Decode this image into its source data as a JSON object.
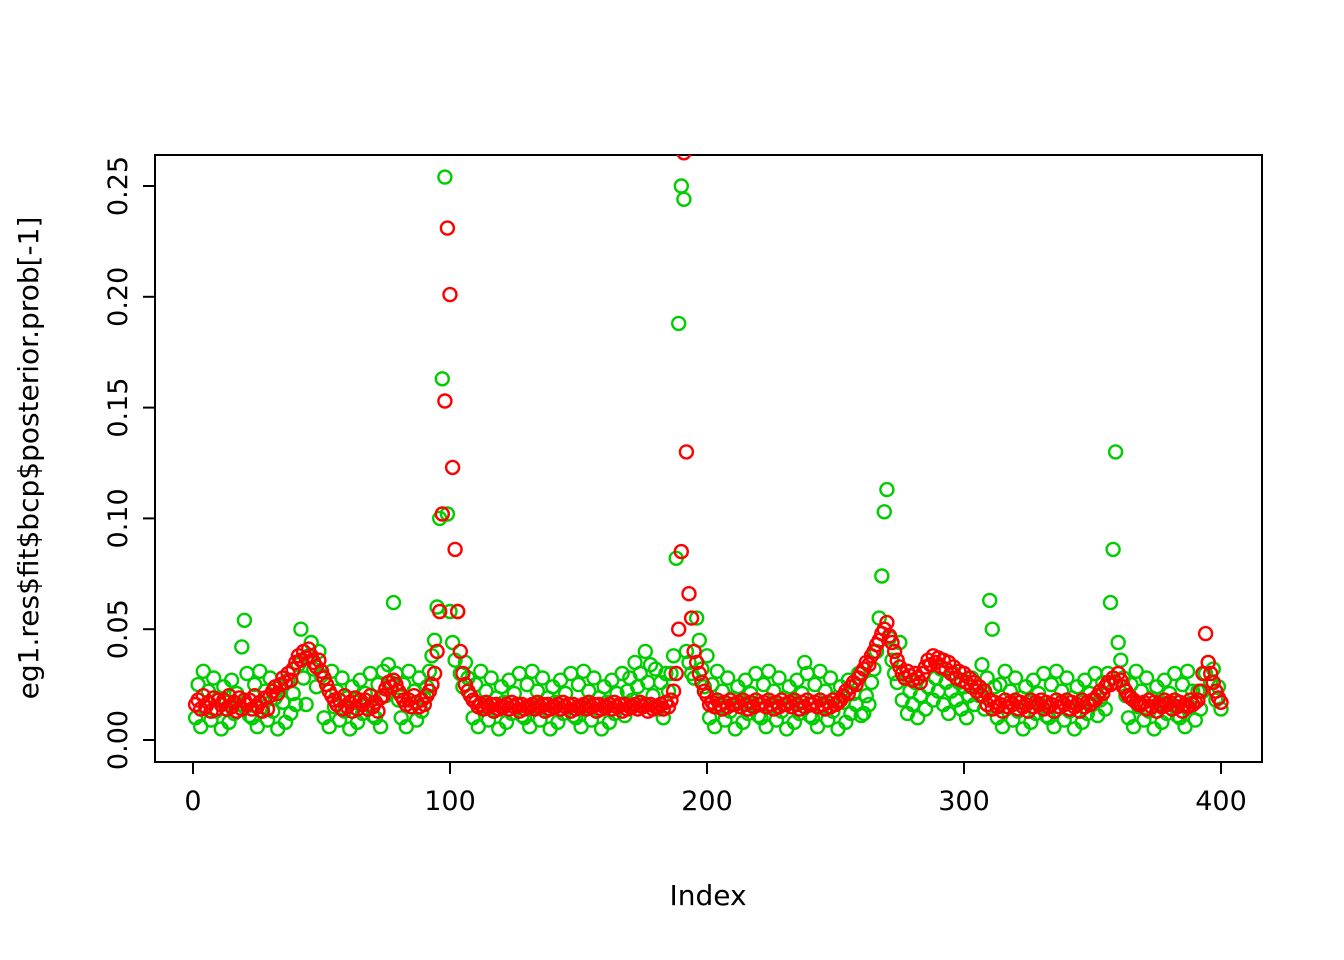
{
  "page": {
    "background": "#ffffff"
  },
  "chart_data": {
    "type": "scatter",
    "title": "",
    "xlabel": "Index",
    "ylabel": "eg1.res$fit$bcp$posterior.prob[-1]",
    "x_ticks": [
      0,
      100,
      200,
      300,
      400
    ],
    "y_tick_labels": [
      "0.00",
      "0.05",
      "0.10",
      "0.15",
      "0.20",
      "0.25"
    ],
    "y_tick_values": [
      0.0,
      0.05,
      0.1,
      0.15,
      0.2,
      0.25
    ],
    "xlim": [
      -15,
      415
    ],
    "ylim": [
      0.0,
      0.265
    ],
    "grid": false,
    "legend": "none",
    "marker": "open-circle",
    "marker_radius_px": 6.5,
    "series": [
      {
        "name": "green-series",
        "color": "#00CD00",
        "x_start": 1,
        "y": [
          0.01,
          0.025,
          0.006,
          0.031,
          0.015,
          0.022,
          0.009,
          0.028,
          0.013,
          0.019,
          0.005,
          0.024,
          0.017,
          0.008,
          0.027,
          0.012,
          0.021,
          0.016,
          0.042,
          0.054,
          0.03,
          0.011,
          0.01,
          0.025,
          0.006,
          0.031,
          0.015,
          0.022,
          0.009,
          0.028,
          0.013,
          0.019,
          0.005,
          0.024,
          0.017,
          0.008,
          0.027,
          0.012,
          0.021,
          0.016,
          0.034,
          0.05,
          0.028,
          0.016,
          0.038,
          0.044,
          0.032,
          0.024,
          0.04,
          0.029,
          0.01,
          0.025,
          0.006,
          0.031,
          0.015,
          0.022,
          0.009,
          0.028,
          0.013,
          0.019,
          0.005,
          0.024,
          0.017,
          0.008,
          0.027,
          0.012,
          0.021,
          0.016,
          0.03,
          0.011,
          0.01,
          0.025,
          0.006,
          0.031,
          0.02,
          0.034,
          0.026,
          0.062,
          0.03,
          0.018,
          0.01,
          0.025,
          0.006,
          0.031,
          0.015,
          0.022,
          0.009,
          0.028,
          0.013,
          0.019,
          0.024,
          0.031,
          0.038,
          0.045,
          0.06,
          0.1,
          0.163,
          0.254,
          0.102,
          0.058,
          0.044,
          0.036,
          0.058,
          0.03,
          0.024,
          0.035,
          0.028,
          0.02,
          0.01,
          0.025,
          0.006,
          0.031,
          0.015,
          0.022,
          0.009,
          0.028,
          0.013,
          0.019,
          0.005,
          0.024,
          0.017,
          0.008,
          0.027,
          0.012,
          0.021,
          0.016,
          0.03,
          0.011,
          0.01,
          0.025,
          0.006,
          0.031,
          0.015,
          0.022,
          0.009,
          0.028,
          0.013,
          0.019,
          0.005,
          0.024,
          0.017,
          0.008,
          0.027,
          0.012,
          0.021,
          0.016,
          0.03,
          0.011,
          0.01,
          0.025,
          0.006,
          0.031,
          0.015,
          0.022,
          0.009,
          0.028,
          0.013,
          0.019,
          0.005,
          0.024,
          0.017,
          0.008,
          0.027,
          0.012,
          0.021,
          0.016,
          0.03,
          0.011,
          0.022,
          0.028,
          0.018,
          0.035,
          0.024,
          0.03,
          0.016,
          0.04,
          0.026,
          0.034,
          0.02,
          0.032,
          0.014,
          0.026,
          0.01,
          0.03,
          0.022,
          0.03,
          0.038,
          0.082,
          0.188,
          0.25,
          0.244,
          0.04,
          0.035,
          0.03,
          0.028,
          0.055,
          0.045,
          0.032,
          0.024,
          0.038,
          0.01,
          0.025,
          0.006,
          0.031,
          0.015,
          0.022,
          0.009,
          0.028,
          0.013,
          0.019,
          0.005,
          0.024,
          0.017,
          0.008,
          0.027,
          0.012,
          0.021,
          0.016,
          0.03,
          0.011,
          0.01,
          0.025,
          0.006,
          0.031,
          0.015,
          0.022,
          0.009,
          0.028,
          0.013,
          0.019,
          0.005,
          0.024,
          0.017,
          0.008,
          0.027,
          0.012,
          0.021,
          0.035,
          0.03,
          0.011,
          0.01,
          0.025,
          0.006,
          0.031,
          0.015,
          0.022,
          0.009,
          0.028,
          0.013,
          0.019,
          0.005,
          0.024,
          0.017,
          0.008,
          0.027,
          0.012,
          0.021,
          0.016,
          0.03,
          0.011,
          0.012,
          0.02,
          0.016,
          0.026,
          0.032,
          0.04,
          0.055,
          0.074,
          0.103,
          0.113,
          0.046,
          0.036,
          0.03,
          0.026,
          0.044,
          0.018,
          0.028,
          0.012,
          0.022,
          0.016,
          0.026,
          0.01,
          0.02,
          0.03,
          0.014,
          0.024,
          0.034,
          0.018,
          0.028,
          0.022,
          0.032,
          0.016,
          0.026,
          0.012,
          0.022,
          0.03,
          0.018,
          0.026,
          0.014,
          0.024,
          0.01,
          0.02,
          0.028,
          0.016,
          0.024,
          0.02,
          0.034,
          0.014,
          0.028,
          0.063,
          0.05,
          0.024,
          0.01,
          0.025,
          0.006,
          0.031,
          0.015,
          0.022,
          0.009,
          0.028,
          0.013,
          0.019,
          0.005,
          0.024,
          0.017,
          0.008,
          0.027,
          0.012,
          0.021,
          0.016,
          0.03,
          0.011,
          0.01,
          0.025,
          0.006,
          0.031,
          0.015,
          0.022,
          0.009,
          0.028,
          0.013,
          0.019,
          0.005,
          0.024,
          0.017,
          0.008,
          0.027,
          0.012,
          0.021,
          0.016,
          0.03,
          0.011,
          0.018,
          0.026,
          0.014,
          0.03,
          0.062,
          0.086,
          0.13,
          0.044,
          0.036,
          0.028,
          0.02,
          0.01,
          0.025,
          0.006,
          0.031,
          0.015,
          0.022,
          0.009,
          0.028,
          0.013,
          0.019,
          0.005,
          0.024,
          0.017,
          0.008,
          0.027,
          0.012,
          0.021,
          0.016,
          0.03,
          0.011,
          0.01,
          0.025,
          0.006,
          0.031,
          0.015,
          0.022,
          0.009,
          0.022,
          0.014,
          0.022,
          0.03,
          0.035,
          0.026,
          0.032,
          0.018,
          0.024,
          0.014
        ]
      },
      {
        "name": "red-series",
        "color": "#FF0000",
        "x_start": 1,
        "y": [
          0.016,
          0.018,
          0.014,
          0.02,
          0.015,
          0.017,
          0.013,
          0.019,
          0.014,
          0.018,
          0.016,
          0.018,
          0.014,
          0.02,
          0.015,
          0.017,
          0.013,
          0.019,
          0.014,
          0.018,
          0.016,
          0.018,
          0.014,
          0.02,
          0.015,
          0.017,
          0.013,
          0.019,
          0.014,
          0.02,
          0.022,
          0.024,
          0.021,
          0.025,
          0.028,
          0.026,
          0.03,
          0.027,
          0.032,
          0.035,
          0.038,
          0.036,
          0.04,
          0.037,
          0.041,
          0.038,
          0.035,
          0.033,
          0.036,
          0.031,
          0.028,
          0.025,
          0.022,
          0.02,
          0.018,
          0.016,
          0.018,
          0.014,
          0.02,
          0.015,
          0.017,
          0.013,
          0.019,
          0.014,
          0.018,
          0.016,
          0.018,
          0.014,
          0.02,
          0.015,
          0.017,
          0.013,
          0.019,
          0.02,
          0.023,
          0.026,
          0.024,
          0.027,
          0.025,
          0.022,
          0.02,
          0.018,
          0.016,
          0.018,
          0.015,
          0.02,
          0.017,
          0.015,
          0.018,
          0.016,
          0.02,
          0.022,
          0.025,
          0.03,
          0.04,
          0.058,
          0.102,
          0.153,
          0.231,
          0.201,
          0.123,
          0.086,
          0.058,
          0.04,
          0.03,
          0.025,
          0.022,
          0.02,
          0.018,
          0.017,
          0.015,
          0.016,
          0.014,
          0.017,
          0.015,
          0.016,
          0.013,
          0.016,
          0.014,
          0.015,
          0.015,
          0.016,
          0.014,
          0.017,
          0.015,
          0.016,
          0.013,
          0.016,
          0.014,
          0.015,
          0.015,
          0.016,
          0.014,
          0.017,
          0.015,
          0.016,
          0.013,
          0.016,
          0.014,
          0.015,
          0.015,
          0.016,
          0.014,
          0.017,
          0.015,
          0.016,
          0.013,
          0.016,
          0.014,
          0.015,
          0.015,
          0.016,
          0.014,
          0.017,
          0.015,
          0.016,
          0.013,
          0.016,
          0.014,
          0.015,
          0.015,
          0.016,
          0.014,
          0.017,
          0.015,
          0.016,
          0.013,
          0.016,
          0.014,
          0.015,
          0.015,
          0.016,
          0.014,
          0.017,
          0.015,
          0.016,
          0.013,
          0.016,
          0.014,
          0.015,
          0.015,
          0.016,
          0.014,
          0.017,
          0.015,
          0.018,
          0.022,
          0.03,
          0.05,
          0.085,
          0.265,
          0.13,
          0.066,
          0.055,
          0.04,
          0.035,
          0.03,
          0.026,
          0.022,
          0.02,
          0.016,
          0.017,
          0.015,
          0.018,
          0.016,
          0.014,
          0.017,
          0.015,
          0.018,
          0.016,
          0.016,
          0.017,
          0.015,
          0.018,
          0.016,
          0.014,
          0.017,
          0.015,
          0.018,
          0.016,
          0.016,
          0.017,
          0.015,
          0.018,
          0.016,
          0.014,
          0.017,
          0.015,
          0.018,
          0.016,
          0.016,
          0.017,
          0.015,
          0.018,
          0.016,
          0.014,
          0.017,
          0.015,
          0.018,
          0.016,
          0.016,
          0.017,
          0.015,
          0.018,
          0.016,
          0.014,
          0.017,
          0.015,
          0.018,
          0.016,
          0.017,
          0.018,
          0.02,
          0.022,
          0.021,
          0.024,
          0.026,
          0.025,
          0.028,
          0.03,
          0.032,
          0.035,
          0.034,
          0.038,
          0.04,
          0.043,
          0.045,
          0.048,
          0.05,
          0.053,
          0.047,
          0.044,
          0.04,
          0.036,
          0.033,
          0.03,
          0.028,
          0.031,
          0.029,
          0.027,
          0.03,
          0.028,
          0.026,
          0.03,
          0.033,
          0.036,
          0.034,
          0.038,
          0.035,
          0.037,
          0.033,
          0.036,
          0.032,
          0.035,
          0.03,
          0.033,
          0.028,
          0.031,
          0.027,
          0.03,
          0.026,
          0.028,
          0.024,
          0.026,
          0.022,
          0.024,
          0.02,
          0.022,
          0.016,
          0.018,
          0.014,
          0.017,
          0.015,
          0.016,
          0.013,
          0.018,
          0.015,
          0.017,
          0.016,
          0.018,
          0.014,
          0.017,
          0.015,
          0.016,
          0.013,
          0.018,
          0.015,
          0.017,
          0.016,
          0.018,
          0.014,
          0.017,
          0.015,
          0.016,
          0.013,
          0.018,
          0.015,
          0.017,
          0.016,
          0.018,
          0.014,
          0.017,
          0.015,
          0.016,
          0.013,
          0.018,
          0.015,
          0.017,
          0.016,
          0.018,
          0.018,
          0.02,
          0.022,
          0.021,
          0.024,
          0.026,
          0.025,
          0.028,
          0.026,
          0.03,
          0.027,
          0.024,
          0.022,
          0.02,
          0.019,
          0.018,
          0.017,
          0.016,
          0.016,
          0.017,
          0.014,
          0.018,
          0.015,
          0.017,
          0.013,
          0.016,
          0.015,
          0.018,
          0.016,
          0.017,
          0.014,
          0.018,
          0.015,
          0.017,
          0.013,
          0.016,
          0.015,
          0.018,
          0.016,
          0.017,
          0.018,
          0.022,
          0.03,
          0.048,
          0.035,
          0.03,
          0.026,
          0.022,
          0.019,
          0.017
        ]
      }
    ]
  }
}
